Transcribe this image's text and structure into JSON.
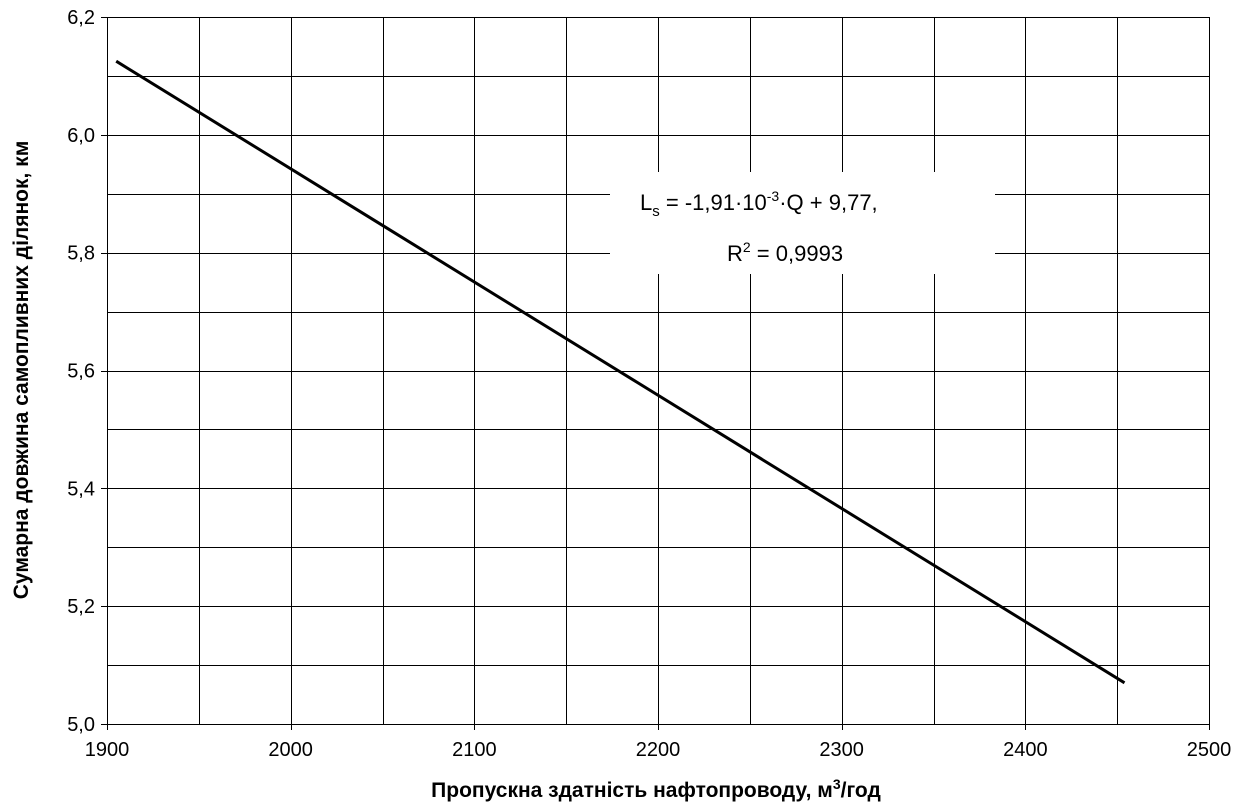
{
  "chart_data": {
    "type": "line",
    "title": "",
    "xlabel_text": "Пропускна здатність нафтопроводу,  м",
    "xlabel_sup": "3",
    "xlabel_unit": "/год",
    "ylabel": "Сумарна довжина самопливних ділянок,  км",
    "xlim": [
      1900,
      2500
    ],
    "ylim": [
      5.0,
      6.2
    ],
    "x_ticks": [
      1900,
      2000,
      2100,
      2200,
      2300,
      2400,
      2500
    ],
    "x_tick_labels": [
      "1900",
      "2000",
      "2100",
      "2200",
      "2300",
      "2400",
      "2500"
    ],
    "y_ticks": [
      5.0,
      5.2,
      5.4,
      5.6,
      5.8,
      6.0,
      6.2
    ],
    "y_tick_labels": [
      "5,0",
      "5,2",
      "5,4",
      "5,6",
      "5,8",
      "6,0",
      "6,2"
    ],
    "x_minor_step": 50,
    "y_minor_step": 0.1,
    "grid": true,
    "series": [
      {
        "x": [
          1905,
          2454
        ],
        "y": [
          6.125,
          5.07
        ],
        "color": "#000000"
      }
    ],
    "annotation": {
      "line1_main": "L",
      "line1_sub": "s",
      "line1_mid": " = -1,91·10",
      "line1_sup": "-3",
      "line1_end": "·Q + 9,77,",
      "line2_main": "R",
      "line2_sup": "2",
      "line2_end": " = 0,9993"
    }
  }
}
